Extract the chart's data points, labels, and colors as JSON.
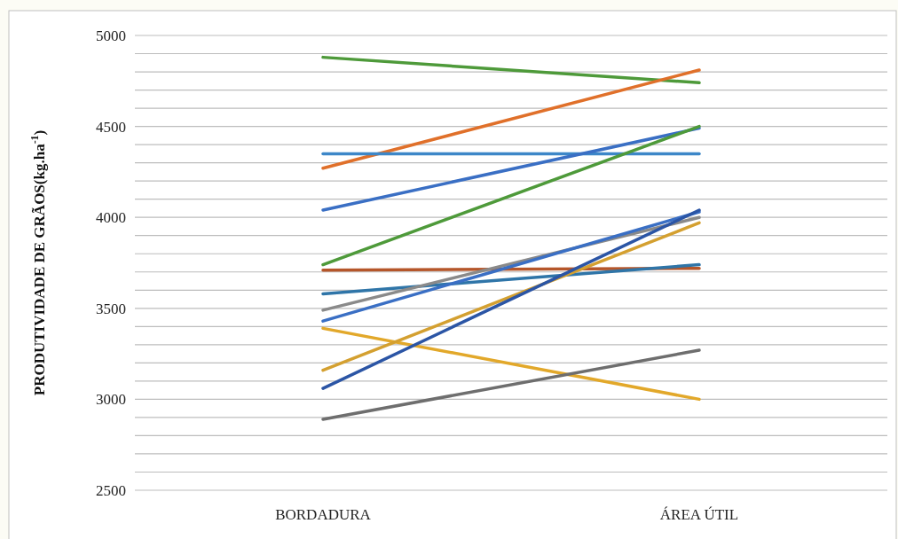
{
  "chart_data": {
    "type": "line",
    "ylabel": "PRODUTIVIDADE DE GRÃOS(kg.ha$^{-1}$)",
    "categories": [
      "BORDADURA",
      "ÁREA ÚTIL"
    ],
    "series": [
      {
        "color": "#4e9a3a",
        "values": [
          4880,
          4740
        ]
      },
      {
        "color": "#e0702a",
        "values": [
          4270,
          4810
        ]
      },
      {
        "color": "#3d87c8",
        "values": [
          4350,
          4350
        ]
      },
      {
        "color": "#3a6fc4",
        "values": [
          4040,
          4490
        ]
      },
      {
        "color": "#4e9a3a",
        "values": [
          3740,
          4500
        ]
      },
      {
        "color": "#b5562a",
        "values": [
          3710,
          3720
        ]
      },
      {
        "color": "#2f75a8",
        "values": [
          3580,
          3740
        ]
      },
      {
        "color": "#8a8a8a",
        "values": [
          3490,
          4000
        ]
      },
      {
        "color": "#3a6fc4",
        "values": [
          3430,
          4030
        ]
      },
      {
        "color": "#e2a82a",
        "values": [
          3390,
          3000
        ]
      },
      {
        "color": "#d4a030",
        "values": [
          3160,
          3970
        ]
      },
      {
        "color": "#2b55a5",
        "values": [
          3060,
          4040
        ]
      },
      {
        "color": "#6e6e6e",
        "values": [
          2890,
          3270
        ]
      }
    ],
    "ylim": [
      2500,
      5000
    ],
    "yticks": [
      2500,
      {
        "value": 2600,
        "label": null
      },
      {
        "value": 2700,
        "label": null
      },
      {
        "value": 2800,
        "label": null
      },
      {
        "value": 2900,
        "label": null
      },
      3000,
      {
        "value": 3100,
        "label": null
      },
      {
        "value": 3200,
        "label": null
      },
      {
        "value": 3300,
        "label": null
      },
      {
        "value": 3400,
        "label": null
      },
      3500,
      {
        "value": 3600,
        "label": null
      },
      {
        "value": 3700,
        "label": null
      },
      {
        "value": 3800,
        "label": null
      },
      {
        "value": 3900,
        "label": null
      },
      4000,
      {
        "value": 4100,
        "label": null
      },
      {
        "value": 4200,
        "label": null
      },
      {
        "value": 4300,
        "label": null
      },
      {
        "value": 4400,
        "label": null
      },
      4500,
      {
        "value": 4600,
        "label": null
      },
      {
        "value": 4700,
        "label": null
      },
      {
        "value": 4800,
        "label": null
      },
      {
        "value": 4900,
        "label": null
      },
      5000
    ],
    "grid": true,
    "marker": "none",
    "line_style": "solid"
  }
}
